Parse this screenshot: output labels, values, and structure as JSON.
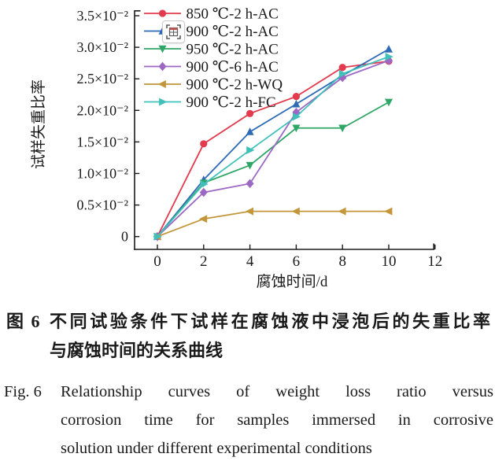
{
  "icons": {
    "overlay_tool": "table-capture-icon"
  },
  "chart_data": {
    "type": "line",
    "x": [
      0,
      2,
      4,
      6,
      8,
      10
    ],
    "xlabel": "腐蚀时间/d",
    "ylabel": "试样失重比率",
    "y_unit_note": "series values expressed in units of 10⁻²",
    "xlim": [
      -1,
      12
    ],
    "ylim": [
      0,
      3.5
    ],
    "grid": false,
    "legend_position": "top-left-inside",
    "xticks": {
      "values": [
        0,
        2,
        4,
        6,
        8,
        10,
        12
      ],
      "labels": [
        "0",
        "2",
        "4",
        "6",
        "8",
        "10",
        "12"
      ]
    },
    "yticks": {
      "values": [
        0,
        0.5,
        1.0,
        1.5,
        2.0,
        2.5,
        3.0,
        3.5
      ],
      "labels": [
        "0",
        "0.5×10⁻²",
        "1.0×10⁻²",
        "1.5×10⁻²",
        "2.0×10⁻²",
        "2.5×10⁻²",
        "3.0×10⁻²",
        "3.5×10⁻²"
      ]
    },
    "series": [
      {
        "name": "850 ℃-2 h-AC",
        "color": "#e23b4e",
        "marker": "circle",
        "values": [
          0,
          1.47,
          1.95,
          2.22,
          2.68,
          2.78
        ]
      },
      {
        "name": "900 ℃-2 h-AC",
        "color": "#2e6bb7",
        "marker": "triangle-up",
        "values": [
          0,
          0.9,
          1.66,
          2.1,
          2.55,
          2.97
        ]
      },
      {
        "name": "950 ℃-2 h-AC",
        "color": "#2fa666",
        "marker": "triangle-down",
        "values": [
          0,
          0.85,
          1.13,
          1.72,
          1.72,
          2.13
        ]
      },
      {
        "name": "900 ℃-6 h-AC",
        "color": "#9c68c4",
        "marker": "diamond",
        "values": [
          0,
          0.7,
          0.84,
          1.97,
          2.52,
          2.79
        ]
      },
      {
        "name": "900 ℃-2 h-WQ",
        "color": "#c3963a",
        "marker": "triangle-left",
        "values": [
          0,
          0.28,
          0.4,
          0.4,
          0.4,
          0.4
        ]
      },
      {
        "name": "900 ℃-2 h-FC",
        "color": "#41c0ba",
        "marker": "triangle-right",
        "values": [
          0,
          0.83,
          1.37,
          1.9,
          2.58,
          2.85
        ]
      }
    ]
  },
  "captions": {
    "zh": {
      "label": "图 6",
      "line1": "不同试验条件下试样在腐蚀液中浸泡后的失重比率",
      "line2": "与腐蚀时间的关系曲线"
    },
    "en": {
      "label": "Fig. 6",
      "line1": "Relationship curves of weight loss ratio versus",
      "line2": "corrosion time for samples immersed in corrosive",
      "line3": "solution under different experimental conditions"
    }
  }
}
